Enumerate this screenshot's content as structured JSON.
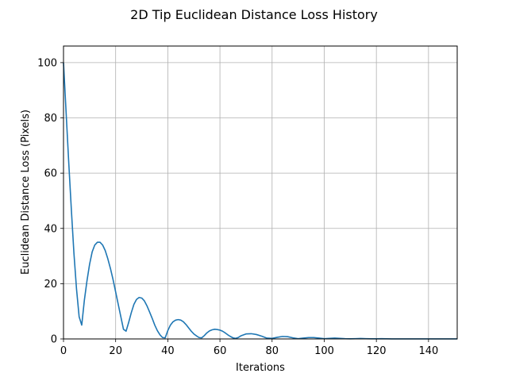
{
  "chart_data": {
    "type": "line",
    "title": "2D Tip Euclidean Distance Loss History",
    "xlabel": "Iterations",
    "ylabel": "Euclidean Distance Loss (Pixels)",
    "xlim": [
      0,
      151
    ],
    "ylim": [
      0,
      106
    ],
    "xticks": [
      0,
      20,
      40,
      60,
      80,
      100,
      120,
      140
    ],
    "yticks": [
      0,
      20,
      40,
      60,
      80,
      100
    ],
    "grid": true,
    "series": [
      {
        "color": "#1f77b4",
        "x": [
          0,
          1,
          2,
          3,
          4,
          5,
          6,
          7,
          8,
          9,
          10,
          11,
          12,
          13,
          14,
          15,
          16,
          17,
          18,
          19,
          20,
          21,
          22,
          23,
          24,
          25,
          26,
          27,
          28,
          29,
          30,
          31,
          32,
          33,
          34,
          35,
          36,
          37,
          38,
          39,
          40,
          41,
          42,
          43,
          44,
          45,
          46,
          47,
          48,
          49,
          50,
          51,
          52,
          53,
          54,
          55,
          56,
          57,
          58,
          59,
          60,
          61,
          62,
          63,
          64,
          65,
          66,
          67,
          68,
          70,
          72,
          74,
          76,
          78,
          80,
          82,
          84,
          86,
          88,
          90,
          92,
          94,
          96,
          98,
          100,
          102,
          104,
          106,
          108,
          110,
          112,
          114,
          116,
          118,
          120,
          122,
          124,
          126,
          128,
          130,
          135,
          140,
          145,
          151
        ],
        "y": [
          100,
          82,
          64,
          47,
          31,
          18,
          8,
          5,
          14,
          21,
          27,
          31.5,
          34,
          35,
          35,
          34,
          32,
          29,
          25.5,
          21.5,
          17,
          12.5,
          8,
          3.5,
          2.8,
          6,
          9.5,
          12.5,
          14.3,
          15,
          14.8,
          13.8,
          12,
          9.8,
          7.5,
          5,
          3,
          1.5,
          0.5,
          0.4,
          3,
          5,
          6.2,
          6.8,
          7,
          6.8,
          6.2,
          5.2,
          4,
          2.8,
          1.8,
          1.1,
          0.5,
          0.4,
          1.2,
          2.2,
          2.9,
          3.3,
          3.5,
          3.4,
          3.2,
          2.8,
          2.2,
          1.5,
          0.9,
          0.4,
          0.2,
          0.5,
          1.1,
          1.8,
          1.9,
          1.6,
          1.0,
          0.3,
          0.2,
          0.6,
          0.9,
          0.8,
          0.4,
          0.1,
          0.3,
          0.5,
          0.5,
          0.3,
          0.1,
          0.2,
          0.3,
          0.2,
          0.1,
          0.05,
          0.1,
          0.15,
          0.1,
          0.05,
          0.05,
          0.08,
          0.06,
          0.03,
          0.03,
          0.03,
          0.02,
          0.01,
          0.01,
          0.01
        ]
      }
    ]
  }
}
